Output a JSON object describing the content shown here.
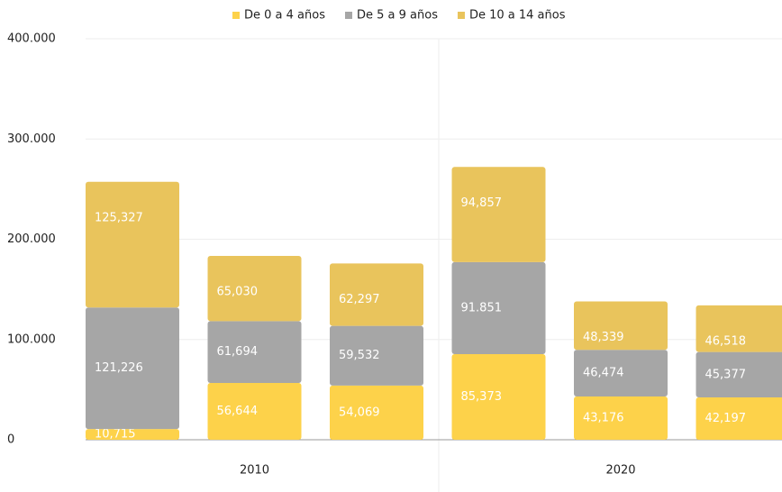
{
  "chart_data": {
    "type": "stacked_bar",
    "categories": [
      null,
      "2010",
      null,
      null,
      "2020",
      null
    ],
    "series": [
      {
        "name": "De 0 a 4 años",
        "color": "#fdd24a",
        "values": [
          10715,
          56644,
          54069,
          85373,
          43176,
          42197
        ],
        "value_labels": [
          "10,715",
          "56,644",
          "54,069",
          "85,373",
          "43,176",
          "42,197"
        ]
      },
      {
        "name": "De 5 a 9 años",
        "color": "#a6a6a6",
        "values": [
          121226,
          61694,
          59532,
          91851,
          46474,
          45377
        ],
        "value_labels": [
          "121,226",
          "61,694",
          "59,532",
          "91.851",
          "46,474",
          "45,377"
        ]
      },
      {
        "name": "De 10 a 14 años",
        "color": "#e9c45c",
        "values": [
          125327,
          65030,
          62297,
          94857,
          48339,
          46518
        ],
        "value_labels": [
          "125,327",
          "65,030",
          "62,297",
          "94,857",
          "48,339",
          "46,518"
        ]
      }
    ],
    "ylim": [
      0,
      400000
    ],
    "yticks": [
      0,
      {
        "value": 100000,
        "label": "100.000"
      },
      {
        "value": 200000,
        "label": "200.000"
      },
      {
        "value": 300000,
        "label": "300.000"
      },
      {
        "value": 400000,
        "label": "400.000"
      }
    ],
    "grid": true,
    "legend": "top"
  }
}
